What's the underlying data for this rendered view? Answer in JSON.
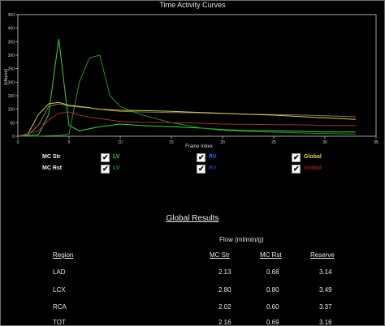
{
  "title": "Time Activity Curves",
  "chart_data": {
    "type": "line",
    "xlabel": "Frame Index",
    "ylabel": "(kBq/ml)",
    "xlim": [
      0,
      35
    ],
    "ylim": [
      0,
      450
    ],
    "xticks": [
      0,
      5,
      10,
      15,
      20,
      25,
      30,
      35
    ],
    "yticks": [
      0,
      50,
      100,
      150,
      200,
      250,
      300,
      350,
      400,
      450
    ],
    "grid": false,
    "series": [
      {
        "name": "LV",
        "color": "#3ecf3e",
        "x": [
          0,
          1,
          2,
          3,
          4,
          5,
          6,
          7,
          8,
          9,
          10,
          12,
          15,
          18,
          20,
          22,
          25,
          28,
          30,
          33
        ],
        "y": [
          0,
          2,
          5,
          80,
          360,
          40,
          20,
          28,
          35,
          40,
          45,
          40,
          35,
          30,
          25,
          22,
          20,
          18,
          16,
          16
        ]
      },
      {
        "name": "LV",
        "color": "#2d8f2d",
        "x": [
          0,
          2,
          3,
          4,
          5,
          6,
          7,
          8,
          9,
          10,
          12,
          15,
          18,
          20,
          22,
          25,
          28,
          30,
          33
        ],
        "y": [
          0,
          0,
          2,
          3,
          8,
          200,
          290,
          300,
          150,
          110,
          80,
          50,
          30,
          22,
          18,
          15,
          12,
          10,
          8
        ]
      },
      {
        "name": "RV",
        "color": "#8a7a50",
        "x": [
          0,
          1,
          2,
          3,
          4,
          5,
          6,
          7,
          8,
          9,
          10,
          12,
          15,
          18,
          20,
          22,
          25,
          28,
          30,
          33
        ],
        "y": [
          0,
          5,
          40,
          110,
          120,
          112,
          108,
          105,
          100,
          95,
          92,
          90,
          88,
          86,
          84,
          82,
          80,
          78,
          76,
          72
        ]
      },
      {
        "name": "Global",
        "color": "#c8c860",
        "x": [
          0,
          1,
          2,
          3,
          4,
          5,
          6,
          7,
          8,
          9,
          10,
          12,
          15,
          18,
          20,
          22,
          25,
          28,
          30,
          33
        ],
        "y": [
          0,
          10,
          80,
          120,
          125,
          115,
          110,
          106,
          100,
          98,
          96,
          95,
          92,
          88,
          85,
          82,
          78,
          72,
          68,
          62
        ]
      },
      {
        "name": "Global",
        "color": "#a03030",
        "x": [
          0,
          2,
          3,
          4,
          5,
          6,
          7,
          8,
          9,
          10,
          12,
          15,
          18,
          20,
          22,
          25,
          28,
          30,
          33
        ],
        "y": [
          0,
          20,
          60,
          85,
          90,
          78,
          70,
          65,
          60,
          55,
          52,
          50,
          48,
          45,
          44,
          43,
          42,
          40,
          40
        ]
      }
    ]
  },
  "legend": {
    "rows": [
      {
        "label": "MC Str",
        "items": [
          {
            "text": "LV",
            "color": "#3ecf3e",
            "checked": true
          },
          {
            "text": "RV",
            "color": "#3a5fff",
            "checked": true
          },
          {
            "text": "Global",
            "color": "#d4d44a",
            "checked": true
          }
        ]
      },
      {
        "label": "MC Rst",
        "items": [
          {
            "text": "LV",
            "color": "#2d8f2d",
            "checked": true
          },
          {
            "text": "RV",
            "color": "#233a99",
            "checked": true
          },
          {
            "text": "Global",
            "color": "#8a2020",
            "checked": true
          }
        ]
      }
    ],
    "check_glyph": "✔"
  },
  "results": {
    "title": "Global Results",
    "flow_header": "Flow (ml/min/g)",
    "columns": [
      "Region",
      "MC Str",
      "MC Rst",
      "Reserve"
    ],
    "rows": [
      [
        "LAD",
        "2.13",
        "0.68",
        "3.14"
      ],
      [
        "LCX",
        "2.80",
        "0.80",
        "3.49"
      ],
      [
        "RCA",
        "2.02",
        "0.60",
        "3.37"
      ],
      [
        "TOT",
        "2.16",
        "0.69",
        "3.16"
      ]
    ]
  }
}
